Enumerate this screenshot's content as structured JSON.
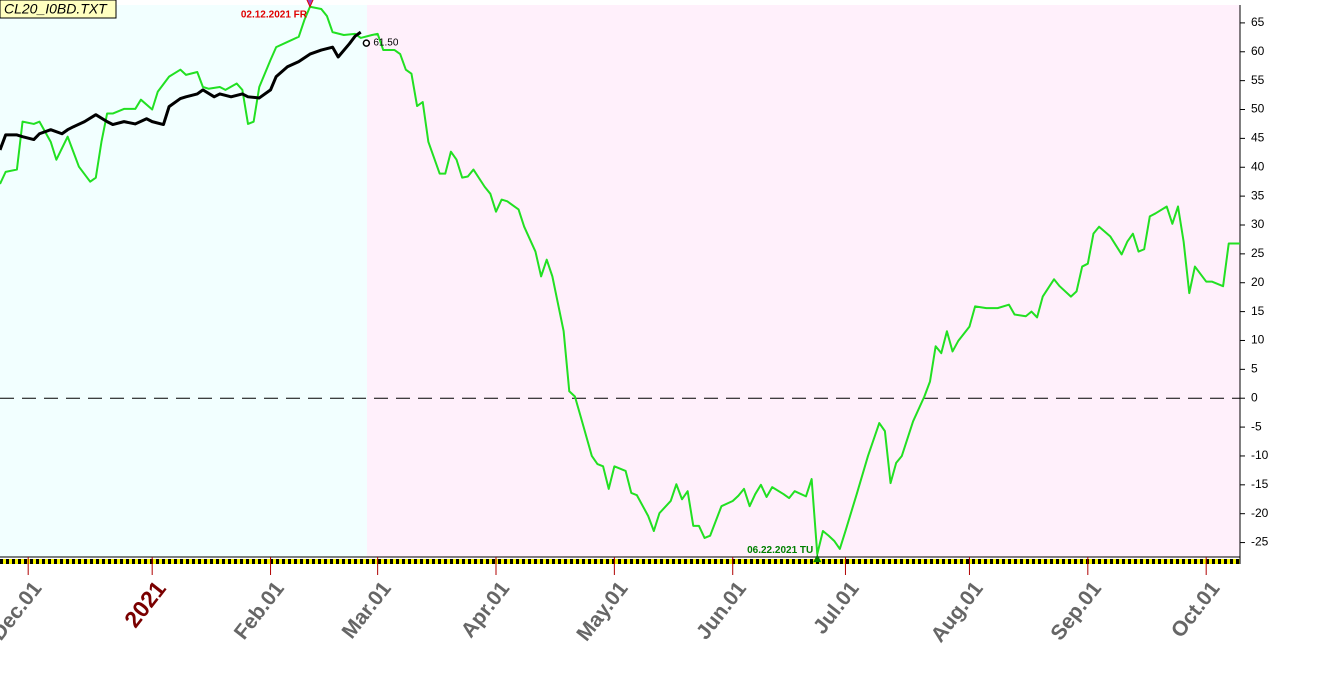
{
  "chart_data": {
    "type": "line",
    "title": "CL20_I0BD.TXT",
    "xlim": [
      0,
      220
    ],
    "ylim": [
      -27.5,
      68.1
    ],
    "xticks": [
      {
        "value": 5,
        "label": "Dec.01"
      },
      {
        "value": 27,
        "label": "2021"
      },
      {
        "value": 48,
        "label": "Feb.01"
      },
      {
        "value": 67,
        "label": "Mar.01"
      },
      {
        "value": 88,
        "label": "Apr.01"
      },
      {
        "value": 109,
        "label": "May.01"
      },
      {
        "value": 130,
        "label": "Jun.01"
      },
      {
        "value": 150,
        "label": "Jul.01"
      },
      {
        "value": 172,
        "label": "Aug.01"
      },
      {
        "value": 193,
        "label": "Sep.01"
      },
      {
        "value": 214,
        "label": "Oct.01"
      }
    ],
    "yticks": [
      -25,
      -20,
      -15,
      -10,
      -5,
      0,
      5,
      10,
      15,
      20,
      25,
      30,
      35,
      40,
      45,
      50,
      55,
      60,
      65
    ],
    "hline": 0,
    "series": [
      {
        "color": "#22e022",
        "x": [
          0,
          1,
          3,
          4,
          6,
          7,
          9,
          10,
          12,
          13,
          14,
          16,
          17,
          18,
          19,
          20,
          22,
          24,
          25,
          27,
          28,
          30,
          32,
          33,
          35,
          36,
          37,
          39,
          40,
          42,
          43,
          44,
          45,
          46,
          48,
          49,
          51,
          53,
          54,
          55,
          57,
          58,
          59,
          61,
          63,
          64,
          66,
          67,
          68,
          70,
          71,
          72,
          73,
          74,
          75,
          76,
          78,
          79,
          80,
          81,
          82,
          83,
          84,
          86,
          87,
          88,
          89,
          90,
          92,
          93,
          95,
          96,
          97,
          98,
          100,
          101,
          102,
          103,
          105,
          106,
          107,
          108,
          109,
          111,
          112,
          113,
          115,
          116,
          117,
          119,
          120,
          121,
          122,
          123,
          124,
          125,
          126,
          128,
          130,
          131,
          132,
          133,
          134,
          135,
          136,
          137,
          139,
          140,
          141,
          143,
          144,
          145,
          146,
          147,
          148,
          149,
          150,
          152,
          154,
          156,
          157,
          158,
          159,
          160,
          162,
          164,
          165,
          166,
          167,
          168,
          169,
          170,
          172,
          173,
          175,
          177,
          179,
          180,
          182,
          183,
          184,
          185,
          187,
          188,
          190,
          191,
          192,
          193,
          194,
          195,
          197,
          199,
          200,
          201,
          202,
          203,
          204,
          205,
          207,
          208,
          209,
          210,
          211,
          212,
          214,
          215,
          217,
          218,
          220
        ],
        "values": [
          37.1,
          39.2,
          39.6,
          47.9,
          47.5,
          47.9,
          44.4,
          41.3,
          45.3,
          42.7,
          40.1,
          37.5,
          38.2,
          44.4,
          49.3,
          49.3,
          50.1,
          50.1,
          51.7,
          50.0,
          53.1,
          55.7,
          56.9,
          56.0,
          56.5,
          53.9,
          53.6,
          53.9,
          53.4,
          54.5,
          53.4,
          47.5,
          47.9,
          53.9,
          58.6,
          60.8,
          61.7,
          62.6,
          65.5,
          67.8,
          67.4,
          66.2,
          63.4,
          62.9,
          63.1,
          62.4,
          62.9,
          63.1,
          60.3,
          60.3,
          59.6,
          56.9,
          56.2,
          50.6,
          51.3,
          44.4,
          38.9,
          38.9,
          42.7,
          41.3,
          38.2,
          38.4,
          39.6,
          36.6,
          35.4,
          32.3,
          34.4,
          34.1,
          32.7,
          29.7,
          25.4,
          21.1,
          24.0,
          21.1,
          11.6,
          1.2,
          0.3,
          -3.1,
          -10.0,
          -11.4,
          -11.8,
          -15.7,
          -11.8,
          -12.6,
          -16.4,
          -16.8,
          -20.4,
          -23.0,
          -19.9,
          -17.8,
          -14.9,
          -17.5,
          -16.1,
          -22.1,
          -22.1,
          -24.2,
          -23.8,
          -18.7,
          -17.8,
          -16.9,
          -15.7,
          -18.7,
          -16.6,
          -15.0,
          -17.1,
          -15.4,
          -16.6,
          -17.3,
          -16.1,
          -17.0,
          -14.0,
          -27.0,
          -23.0,
          -23.8,
          -24.7,
          -26.1,
          -23.0,
          -16.6,
          -10.0,
          -4.3,
          -5.7,
          -14.7,
          -11.2,
          -10.0,
          -4.0,
          0.3,
          2.9,
          9.0,
          7.8,
          11.6,
          8.1,
          9.9,
          12.4,
          15.9,
          15.6,
          15.6,
          16.2,
          14.5,
          14.2,
          15.0,
          14.0,
          17.6,
          20.6,
          19.4,
          17.6,
          18.5,
          22.8,
          23.3,
          28.5,
          29.7,
          28.0,
          24.9,
          27.1,
          28.5,
          25.4,
          25.8,
          31.5,
          32.0,
          33.2,
          30.2,
          33.2,
          27.1,
          18.2,
          22.8,
          20.2,
          20.2,
          19.4,
          26.8,
          26.8
        ]
      },
      {
        "color": "#000000",
        "x": [
          0,
          1,
          3,
          4,
          6,
          7,
          9,
          11,
          12,
          13,
          15,
          17,
          19,
          20,
          22,
          24,
          26,
          27,
          29,
          30,
          32,
          33,
          35,
          36,
          38,
          39,
          41,
          43,
          44,
          46,
          48,
          49,
          51,
          53,
          55,
          57,
          59,
          60,
          62,
          63,
          64
        ],
        "values": [
          43.0,
          45.6,
          45.6,
          45.3,
          44.8,
          45.8,
          46.5,
          45.8,
          46.5,
          47.0,
          47.9,
          49.1,
          47.9,
          47.4,
          47.9,
          47.5,
          48.4,
          47.9,
          47.4,
          50.5,
          51.9,
          52.2,
          52.7,
          53.4,
          52.2,
          52.7,
          52.2,
          52.7,
          52.2,
          52.0,
          53.4,
          55.7,
          57.4,
          58.3,
          59.6,
          60.3,
          60.8,
          59.1,
          61.4,
          62.7,
          63.4
        ]
      }
    ],
    "annotations": [
      {
        "text": "02.12.2021 FR",
        "x": 55,
        "y": 67.8,
        "color": "#e00000",
        "marker": "arrow-down"
      },
      {
        "text": "06.22.2021 TU",
        "x": 145,
        "y": -27.0,
        "color": "#008000",
        "marker": "arrow-up"
      },
      {
        "text": "61.50",
        "x": 65,
        "y": 61.5,
        "color": "#000000",
        "marker": "circle"
      }
    ]
  }
}
